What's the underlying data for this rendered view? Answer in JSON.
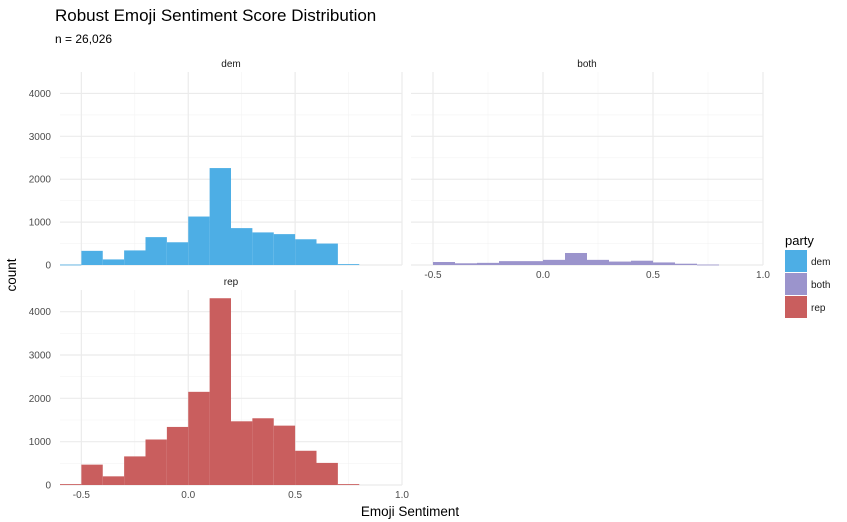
{
  "chart_data": {
    "type": "bar",
    "title": "Robust Emoji Sentiment Score Distribution",
    "subtitle": "n = 26,026",
    "xlabel": "Emoji Sentiment",
    "ylabel": "count",
    "xlim": [
      -0.6,
      1.0
    ],
    "ylim": [
      0,
      4500
    ],
    "x_ticks": [
      -0.5,
      0.0,
      0.5,
      1.0
    ],
    "x_tick_labels": [
      "-0.5",
      "0.0",
      "0.5",
      "1.0"
    ],
    "y_ticks": [
      0,
      1000,
      2000,
      3000,
      4000
    ],
    "y_tick_labels": [
      "0",
      "1000",
      "2000",
      "3000",
      "4000"
    ],
    "grid": true,
    "legend": {
      "title": "party",
      "position": "right",
      "entries": [
        {
          "label": "dem",
          "color": "#4daee5"
        },
        {
          "label": "both",
          "color": "#9b94cc"
        },
        {
          "label": "rep",
          "color": "#c95e5e"
        }
      ]
    },
    "bin_width": 0.1,
    "bin_centers": [
      -0.55,
      -0.45,
      -0.35,
      -0.25,
      -0.15,
      -0.05,
      0.05,
      0.15,
      0.25,
      0.35,
      0.45,
      0.55,
      0.65,
      0.75,
      0.85
    ],
    "facets": [
      {
        "name": "dem",
        "color": "#4daee5",
        "counts": [
          10,
          330,
          130,
          340,
          650,
          530,
          1130,
          2260,
          860,
          760,
          720,
          600,
          500,
          20,
          0
        ]
      },
      {
        "name": "both",
        "color": "#9b94cc",
        "counts": [
          0,
          70,
          40,
          50,
          90,
          90,
          120,
          280,
          120,
          80,
          100,
          60,
          30,
          10,
          0
        ]
      },
      {
        "name": "rep",
        "color": "#c95e5e",
        "counts": [
          20,
          470,
          200,
          660,
          1050,
          1340,
          2150,
          4310,
          1470,
          1540,
          1370,
          790,
          510,
          20,
          0
        ]
      }
    ]
  }
}
